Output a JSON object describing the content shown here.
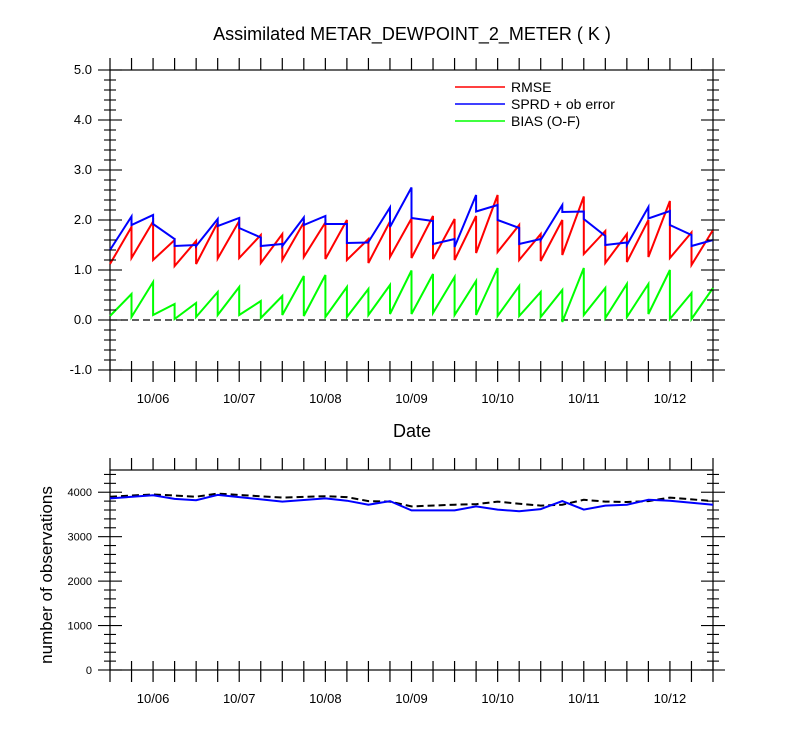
{
  "chart_data": [
    {
      "type": "line",
      "title": "Assimilated METAR_DEWPOINT_2_METER ( K )",
      "xlabel": "Date",
      "ylabel": "",
      "ylim": [
        -1.0,
        5.0
      ],
      "yticks": [
        -1.0,
        0.0,
        1.0,
        2.0,
        3.0,
        4.0,
        5.0
      ],
      "ytick_labels": [
        "-1.0",
        "0.0",
        "1.0",
        "2.0",
        "3.0",
        "4.0",
        "5.0"
      ],
      "xlim": [
        0,
        42
      ],
      "xticks": [
        3,
        9,
        15,
        21,
        27,
        33,
        39
      ],
      "xtick_labels": [
        "10/06",
        "10/07",
        "10/08",
        "10/09",
        "10/10",
        "10/11",
        "10/12"
      ],
      "grid": false,
      "legend_position": "top-right",
      "reference_line": {
        "y": 0.0,
        "style": "dashed"
      },
      "series": [
        {
          "name": "RMSE",
          "color": "#ff0000",
          "points": [
            [
              0,
              1.12
            ],
            [
              1.5,
              1.86
            ],
            [
              1.5,
              1.24
            ],
            [
              3,
              1.97
            ],
            [
              3,
              1.2
            ],
            [
              4.5,
              1.6
            ],
            [
              4.5,
              1.08
            ],
            [
              6,
              1.58
            ],
            [
              6,
              1.12
            ],
            [
              7.5,
              1.95
            ],
            [
              7.5,
              1.23
            ],
            [
              9,
              1.98
            ],
            [
              9,
              1.24
            ],
            [
              10.5,
              1.7
            ],
            [
              10.5,
              1.14
            ],
            [
              12,
              1.72
            ],
            [
              12,
              1.2
            ],
            [
              13.5,
              1.95
            ],
            [
              13.5,
              1.26
            ],
            [
              15,
              1.95
            ],
            [
              15,
              1.22
            ],
            [
              16.5,
              2.0
            ],
            [
              16.5,
              1.2
            ],
            [
              18,
              1.62
            ],
            [
              18,
              1.14
            ],
            [
              19.5,
              1.97
            ],
            [
              19.5,
              1.26
            ],
            [
              21,
              2.03
            ],
            [
              21,
              1.24
            ],
            [
              22.5,
              2.08
            ],
            [
              22.5,
              1.22
            ],
            [
              24,
              2.02
            ],
            [
              24,
              1.2
            ],
            [
              25.5,
              2.08
            ],
            [
              25.5,
              1.34
            ],
            [
              27,
              2.5
            ],
            [
              27,
              1.36
            ],
            [
              28.5,
              1.9
            ],
            [
              28.5,
              1.2
            ],
            [
              30,
              1.72
            ],
            [
              30,
              1.18
            ],
            [
              31.5,
              2.0
            ],
            [
              31.5,
              1.3
            ],
            [
              33,
              2.47
            ],
            [
              33,
              1.32
            ],
            [
              34.5,
              1.78
            ],
            [
              34.5,
              1.14
            ],
            [
              36,
              1.72
            ],
            [
              36,
              1.16
            ],
            [
              37.5,
              2.0
            ],
            [
              37.5,
              1.26
            ],
            [
              39,
              2.38
            ],
            [
              39,
              1.24
            ],
            [
              40.5,
              1.75
            ],
            [
              40.5,
              1.1
            ],
            [
              42,
              1.8
            ]
          ]
        },
        {
          "name": "SPRD + ob error",
          "color": "#0000ff",
          "points": [
            [
              0,
              1.4
            ],
            [
              1.5,
              2.07
            ],
            [
              1.5,
              1.9
            ],
            [
              3,
              2.1
            ],
            [
              3,
              1.92
            ],
            [
              4.5,
              1.62
            ],
            [
              4.5,
              1.48
            ],
            [
              6,
              1.5
            ],
            [
              6,
              1.48
            ],
            [
              7.5,
              2.02
            ],
            [
              7.5,
              1.88
            ],
            [
              9,
              2.04
            ],
            [
              9,
              1.84
            ],
            [
              10.5,
              1.65
            ],
            [
              10.5,
              1.48
            ],
            [
              12,
              1.52
            ],
            [
              12,
              1.48
            ],
            [
              13.5,
              2.05
            ],
            [
              13.5,
              1.9
            ],
            [
              15,
              2.08
            ],
            [
              15,
              1.92
            ],
            [
              16.5,
              1.92
            ],
            [
              16.5,
              1.54
            ],
            [
              18,
              1.55
            ],
            [
              18,
              1.56
            ],
            [
              19.5,
              2.25
            ],
            [
              19.5,
              1.86
            ],
            [
              21,
              2.65
            ],
            [
              21,
              2.04
            ],
            [
              22.5,
              1.98
            ],
            [
              22.5,
              1.52
            ],
            [
              24,
              1.62
            ],
            [
              24,
              1.46
            ],
            [
              25.5,
              2.5
            ],
            [
              25.5,
              2.17
            ],
            [
              27,
              2.3
            ],
            [
              27,
              2.0
            ],
            [
              28.5,
              1.84
            ],
            [
              28.5,
              1.52
            ],
            [
              30,
              1.62
            ],
            [
              30,
              1.6
            ],
            [
              31.5,
              2.3
            ],
            [
              31.5,
              2.16
            ],
            [
              33,
              2.17
            ],
            [
              33,
              2.02
            ],
            [
              34.5,
              1.68
            ],
            [
              34.5,
              1.5
            ],
            [
              36,
              1.55
            ],
            [
              36,
              1.5
            ],
            [
              37.5,
              2.26
            ],
            [
              37.5,
              2.03
            ],
            [
              39,
              2.18
            ],
            [
              39,
              1.9
            ],
            [
              40.5,
              1.7
            ],
            [
              40.5,
              1.48
            ],
            [
              42,
              1.6
            ]
          ]
        },
        {
          "name": "BIAS (O-F)",
          "color": "#00ff00",
          "points": [
            [
              0,
              0.08
            ],
            [
              1.5,
              0.52
            ],
            [
              1.5,
              0.06
            ],
            [
              3,
              0.76
            ],
            [
              3,
              0.1
            ],
            [
              4.5,
              0.32
            ],
            [
              4.5,
              0.02
            ],
            [
              6,
              0.34
            ],
            [
              6,
              0.06
            ],
            [
              7.5,
              0.56
            ],
            [
              7.5,
              0.1
            ],
            [
              9,
              0.66
            ],
            [
              9,
              0.1
            ],
            [
              10.5,
              0.38
            ],
            [
              10.5,
              0.04
            ],
            [
              12,
              0.48
            ],
            [
              12,
              0.1
            ],
            [
              13.5,
              0.88
            ],
            [
              13.5,
              0.08
            ],
            [
              15,
              0.9
            ],
            [
              15,
              0.06
            ],
            [
              16.5,
              0.66
            ],
            [
              16.5,
              0.06
            ],
            [
              18,
              0.62
            ],
            [
              18,
              0.1
            ],
            [
              19.5,
              0.7
            ],
            [
              19.5,
              0.12
            ],
            [
              21,
              0.99
            ],
            [
              21,
              0.12
            ],
            [
              22.5,
              0.92
            ],
            [
              22.5,
              0.14
            ],
            [
              24,
              0.86
            ],
            [
              24,
              0.1
            ],
            [
              25.5,
              0.78
            ],
            [
              25.5,
              0.1
            ],
            [
              27,
              1.04
            ],
            [
              27,
              0.08
            ],
            [
              28.5,
              0.68
            ],
            [
              28.5,
              0.08
            ],
            [
              30,
              0.56
            ],
            [
              30,
              0.06
            ],
            [
              31.5,
              0.6
            ],
            [
              31.5,
              -0.04
            ],
            [
              33,
              1.04
            ],
            [
              33,
              0.1
            ],
            [
              34.5,
              0.64
            ],
            [
              34.5,
              0.04
            ],
            [
              36,
              0.72
            ],
            [
              36,
              0.06
            ],
            [
              37.5,
              0.72
            ],
            [
              37.5,
              0.12
            ],
            [
              39,
              1.0
            ],
            [
              39,
              0.02
            ],
            [
              40.5,
              0.54
            ],
            [
              40.5,
              0.02
            ],
            [
              42,
              0.64
            ]
          ]
        }
      ]
    },
    {
      "type": "line",
      "title": "",
      "xlabel": "",
      "ylabel": "number of observations",
      "ylim": [
        0,
        4500
      ],
      "yticks": [
        0,
        1000,
        2000,
        3000,
        4000
      ],
      "ytick_labels": [
        "0",
        "1000",
        "2000",
        "3000",
        "4000"
      ],
      "xlim": [
        0,
        42
      ],
      "xticks": [
        3,
        9,
        15,
        21,
        27,
        33,
        39
      ],
      "xtick_labels": [
        "10/06",
        "10/07",
        "10/08",
        "10/09",
        "10/10",
        "10/11",
        "10/12"
      ],
      "grid": false,
      "series": [
        {
          "name": "",
          "color": "#000000",
          "style": "dashed",
          "points": [
            [
              0,
              3900
            ],
            [
              3,
              3950
            ],
            [
              6,
              3900
            ],
            [
              7.5,
              3970
            ],
            [
              12,
              3880
            ],
            [
              15,
              3910
            ],
            [
              16.5,
              3890
            ],
            [
              18,
              3800
            ],
            [
              19.5,
              3790
            ],
            [
              21,
              3680
            ],
            [
              24,
              3720
            ],
            [
              25.5,
              3730
            ],
            [
              27,
              3790
            ],
            [
              28.5,
              3740
            ],
            [
              30,
              3700
            ],
            [
              31.5,
              3720
            ],
            [
              33,
              3830
            ],
            [
              34.5,
              3790
            ],
            [
              36,
              3780
            ],
            [
              37.5,
              3800
            ],
            [
              39,
              3880
            ],
            [
              42,
              3800
            ]
          ]
        },
        {
          "name": "",
          "color": "#0000ff",
          "style": "solid",
          "points": [
            [
              0,
              3860
            ],
            [
              3,
              3930
            ],
            [
              4.5,
              3850
            ],
            [
              6,
              3820
            ],
            [
              7.5,
              3940
            ],
            [
              9,
              3890
            ],
            [
              12,
              3790
            ],
            [
              15,
              3860
            ],
            [
              16.5,
              3810
            ],
            [
              18,
              3720
            ],
            [
              19.5,
              3800
            ],
            [
              21,
              3590
            ],
            [
              24,
              3590
            ],
            [
              25.5,
              3680
            ],
            [
              27,
              3610
            ],
            [
              28.5,
              3570
            ],
            [
              30,
              3620
            ],
            [
              31.5,
              3800
            ],
            [
              33,
              3610
            ],
            [
              34.5,
              3700
            ],
            [
              36,
              3720
            ],
            [
              37.5,
              3830
            ],
            [
              39,
              3810
            ],
            [
              42,
              3720
            ]
          ]
        }
      ]
    }
  ]
}
